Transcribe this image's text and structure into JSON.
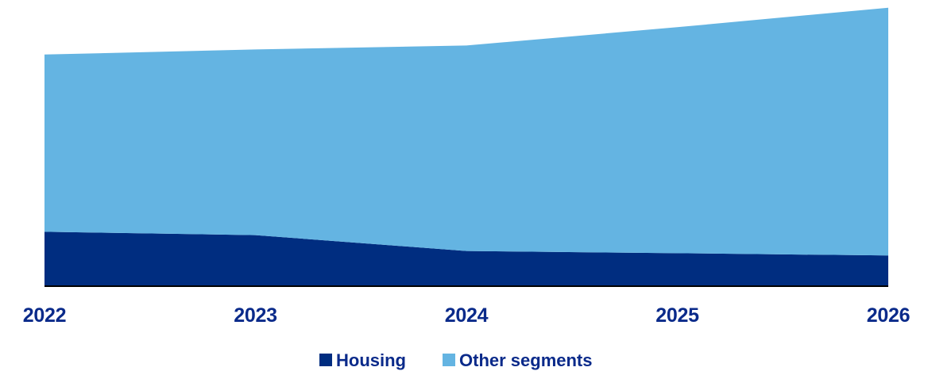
{
  "chart_data": {
    "type": "area",
    "stacked": true,
    "x": [
      "2022",
      "2023",
      "2024",
      "2025",
      "2026"
    ],
    "ylim": [
      0,
      100
    ],
    "series": [
      {
        "name": "Housing",
        "values": [
          19.0,
          17.8,
          12.2,
          11.4,
          10.6
        ]
      },
      {
        "name": "Other segments",
        "values": [
          62.8,
          65.8,
          72.8,
          80.1,
          87.8
        ]
      }
    ],
    "grid": false,
    "legend": "bottom-center",
    "colors": {
      "Housing": "#002d80",
      "Other segments": "#64b4e2",
      "text": "#0a2a8a",
      "axis": "#000000"
    }
  }
}
